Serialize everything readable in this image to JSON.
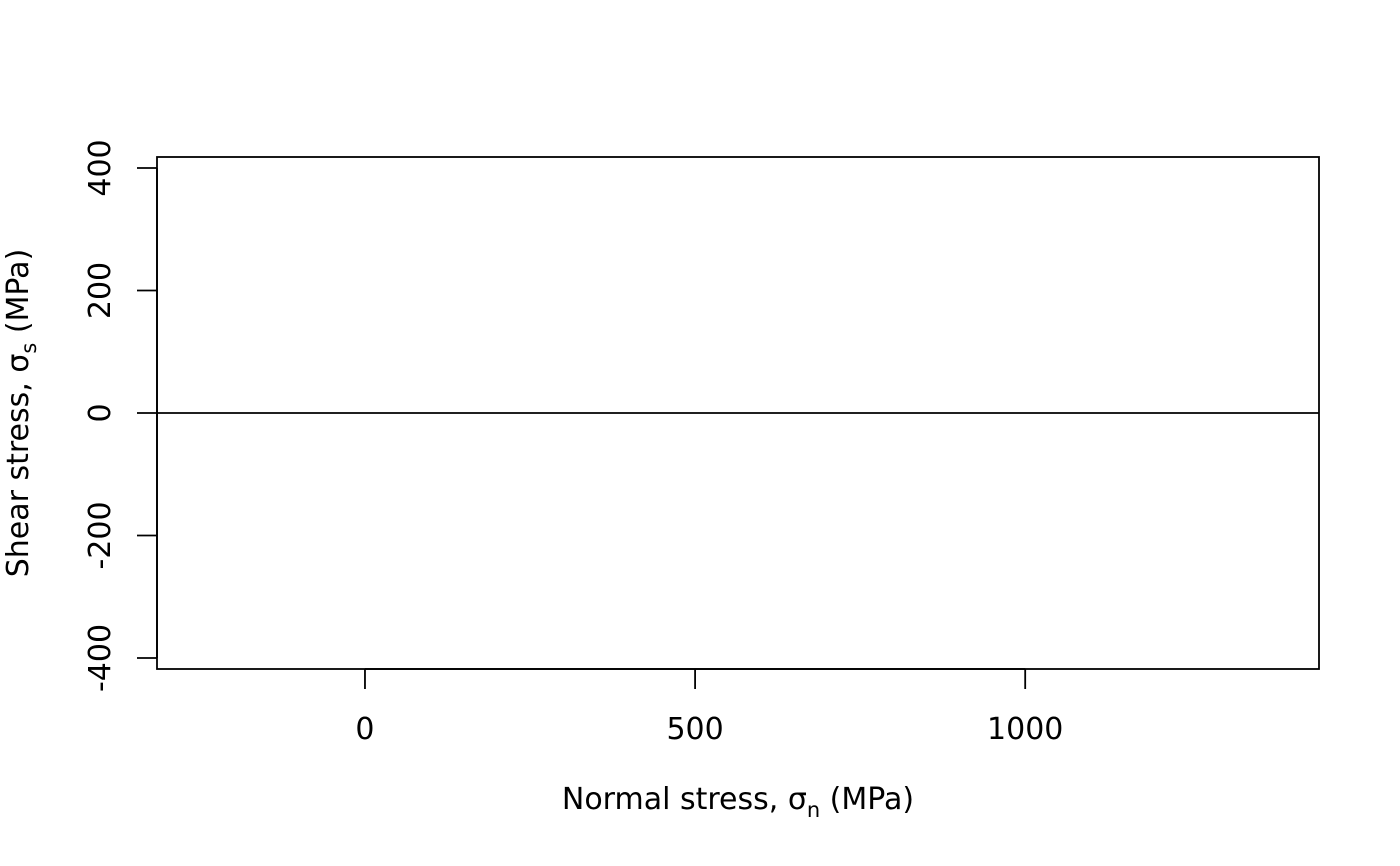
{
  "chart_data": {
    "type": "line",
    "title": "",
    "xlabel": "Normal stress, σn (MPa)",
    "xlabel_parts": {
      "pre": "Normal stress, σ",
      "sub": "n",
      "post": " (MPa)"
    },
    "ylabel": "Shear stress, σs (MPa)",
    "ylabel_parts": {
      "pre": "Shear stress, σ",
      "sub": "s",
      "post": " (MPa)"
    },
    "xlim": [
      -315,
      1445
    ],
    "ylim": [
      -418,
      418
    ],
    "x_ticks": [
      0,
      500,
      1000
    ],
    "x_tick_labels": [
      "0",
      "500",
      "1000"
    ],
    "y_ticks": [
      -400,
      -200,
      0,
      200,
      400
    ],
    "y_tick_labels": [
      "-400",
      "-200",
      "0",
      "200",
      "400"
    ],
    "grid": false,
    "legend": "none",
    "reference_lines": [
      {
        "orientation": "horizontal",
        "y": 0
      }
    ],
    "series": []
  },
  "colors": {
    "axis": "#000000",
    "background": "#ffffff"
  }
}
